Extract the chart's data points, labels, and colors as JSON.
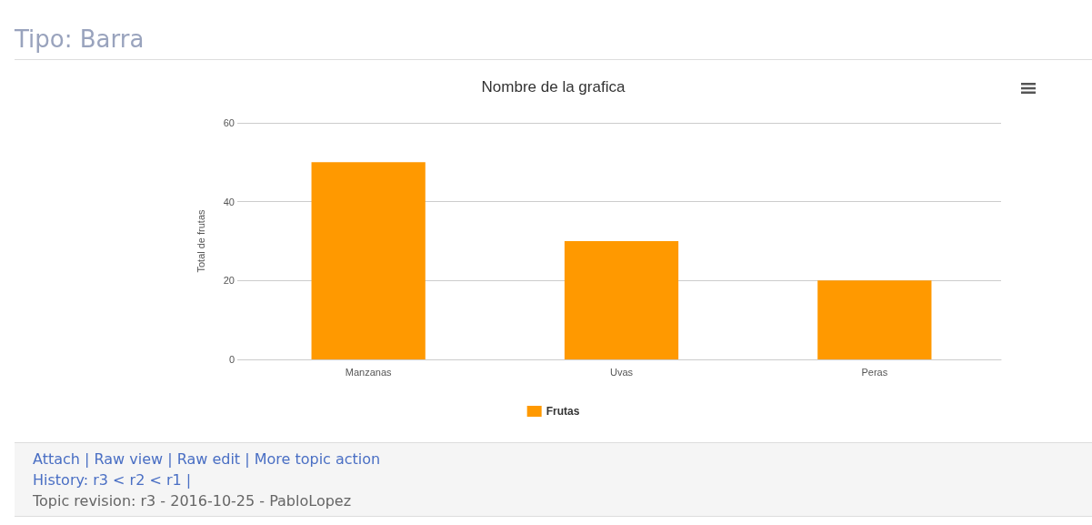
{
  "chart_data": {
    "type": "bar",
    "title": "Nombre de la grafica",
    "ylabel": "Total de frutas",
    "categories": [
      "Manzanas",
      "Uvas",
      "Peras"
    ],
    "series": [
      {
        "name": "Frutas",
        "color": "#ff9900",
        "values": [
          50,
          30,
          20
        ]
      }
    ],
    "ylim": [
      0,
      60
    ],
    "yticks": [
      0,
      20,
      40,
      60
    ],
    "grid": "y",
    "legend": "bottom",
    "annotations": [
      "Tipo: Barra",
      "Attach | Raw view | Raw edit | More topic action",
      "History: r3 < r2 < r1 |",
      "Topic revision: r3 - 2016-10-25 - PabloLopez"
    ]
  }
}
